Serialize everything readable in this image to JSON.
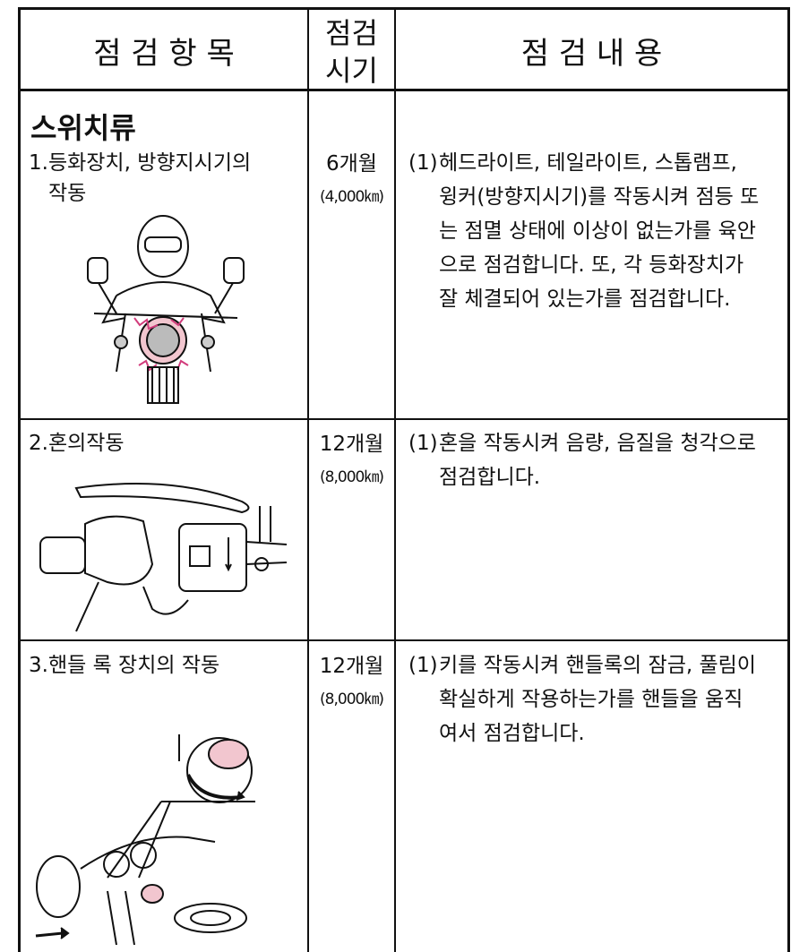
{
  "header": {
    "item": "점 검 항 목",
    "period": [
      "점검",
      "시기"
    ],
    "content": "점 검 내 용"
  },
  "rows": [
    {
      "section": "스위치류",
      "item": [
        "1.등화장치, 방향지시기의",
        "작동"
      ],
      "period": "6개월",
      "distance": "(4,000㎞)",
      "marker": "(1)",
      "content": [
        "헤드라이트, 테일라이트, 스톱램프,",
        "윙커(방향지시기)를 작동시켜 점등 또",
        "는 점멸 상태에 이상이 없는가를 육안",
        "으로 점검합니다. 또, 각 등화장치가",
        "잘 체결되어 있는가를 점검합니다."
      ]
    },
    {
      "item": [
        "2.혼의작동"
      ],
      "period": "12개월",
      "distance": "(8,000㎞)",
      "marker": "(1)",
      "content": [
        "혼을 작동시켜 음량, 음질을 청각으로",
        "점검합니다."
      ]
    },
    {
      "item": [
        "3.핸들 록 장치의 작동"
      ],
      "period": "12개월",
      "distance": "(8,000㎞)",
      "marker": "(1)",
      "content": [
        "키를 작동시켜 핸들록의 잠금, 풀림이",
        "확실하게 작용하는가를 핸들을 움직",
        "여서 점검합니다."
      ]
    }
  ]
}
